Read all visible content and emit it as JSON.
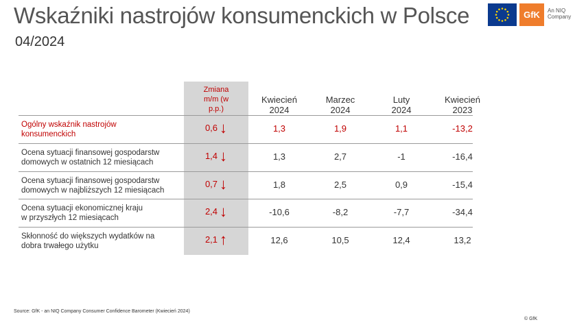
{
  "title": "Wskaźniki nastrojów konsumenckich w Polsce",
  "subtitle": "04/2024",
  "logos": {
    "gfk": "GfK",
    "niq_line1": "An NIQ",
    "niq_line2": "Company"
  },
  "colors": {
    "accent": "#c00000",
    "shade": "#d6d6d6",
    "gfk_orange": "#ef7d2c",
    "eu_blue": "#0b3a8e"
  },
  "table": {
    "headers": {
      "change": [
        "Zmiana",
        "m/m (w",
        "p.p.)"
      ],
      "cols": [
        [
          "Kwiecień",
          "2024"
        ],
        [
          "Marzec",
          "2024"
        ],
        [
          "Luty",
          "2024"
        ],
        [
          "Kwiecień",
          "2023"
        ]
      ]
    },
    "rows": [
      {
        "label": [
          "Ogólny wskaźnik nastrojów",
          "konsumenckich"
        ],
        "change": "0,6",
        "arrow": "↓",
        "values": [
          "1,3",
          "1,9",
          "1,1",
          "-13,2"
        ],
        "highlight": true
      },
      {
        "label": [
          "Ocena sytuacji finansowej gospodarstw",
          "domowych w ostatnich 12 miesiącach"
        ],
        "change": "1,4",
        "arrow": "↓",
        "values": [
          "1,3",
          "2,7",
          "-1",
          "-16,4"
        ],
        "highlight": false
      },
      {
        "label": [
          "Ocena sytuacji finansowej gospodarstw",
          "domowych w najbliższych 12 miesiącach"
        ],
        "change": "0,7",
        "arrow": "↓",
        "values": [
          "1,8",
          "2,5",
          "0,9",
          "-15,4"
        ],
        "highlight": false
      },
      {
        "label": [
          "Ocena sytuacji ekonomicznej kraju",
          "w przyszłych 12 miesiącach"
        ],
        "change": "2,4",
        "arrow": "↓",
        "values": [
          "-10,6",
          "-8,2",
          "-7,7",
          "-34,4"
        ],
        "highlight": false
      },
      {
        "label": [
          "Skłonność do większych wydatków na",
          "dobra trwałego użytku"
        ],
        "change": "2,1",
        "arrow": "↑",
        "values": [
          "12,6",
          "10,5",
          "12,4",
          "13,2"
        ],
        "highlight": false
      }
    ]
  },
  "source": "Source: GfK - an NIQ Company Consumer Confidence Barometer (Kwiecień 2024)",
  "copyright": "© GfK"
}
